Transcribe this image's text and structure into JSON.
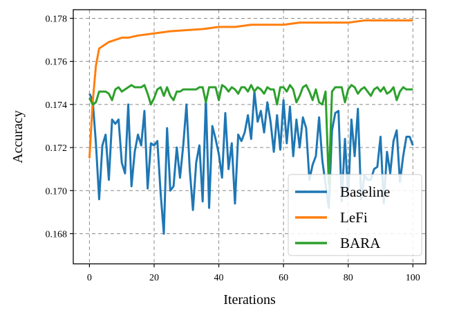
{
  "chart_data": {
    "type": "line",
    "title": "",
    "xlabel": "Iterations",
    "ylabel": "Accuracy",
    "xlim": [
      -5,
      104
    ],
    "ylim": [
      0.1666,
      0.1784
    ],
    "x_ticks": [
      0,
      20,
      40,
      60,
      80,
      100
    ],
    "x_tick_labels": [
      "0",
      "20",
      "40",
      "60",
      "80",
      "100"
    ],
    "y_ticks": [
      0.168,
      0.17,
      0.172,
      0.174,
      0.176,
      0.178
    ],
    "y_tick_labels": [
      "0.168",
      "0.170",
      "0.172",
      "0.174",
      "0.176",
      "0.178"
    ],
    "grid": true,
    "legend_position": "lower-right",
    "series": [
      {
        "name": "Baseline",
        "color": "#1f77b4",
        "values": [
          0.1745,
          0.1742,
          0.1722,
          0.1696,
          0.1721,
          0.1726,
          0.1705,
          0.1733,
          0.1731,
          0.1733,
          0.1713,
          0.1708,
          0.174,
          0.1702,
          0.1718,
          0.1726,
          0.1721,
          0.1737,
          0.1701,
          0.1722,
          0.1721,
          0.1723,
          0.1699,
          0.168,
          0.1729,
          0.17,
          0.1702,
          0.172,
          0.1706,
          0.1721,
          0.174,
          0.171,
          0.1691,
          0.1713,
          0.1721,
          0.1695,
          0.1743,
          0.1692,
          0.173,
          0.1724,
          0.1717,
          0.1706,
          0.1736,
          0.171,
          0.1722,
          0.1694,
          0.1726,
          0.1723,
          0.1727,
          0.1735,
          0.1724,
          0.1746,
          0.1732,
          0.1737,
          0.1727,
          0.1741,
          0.1732,
          0.1718,
          0.1735,
          0.1719,
          0.1742,
          0.1722,
          0.1739,
          0.1716,
          0.1733,
          0.172,
          0.1734,
          0.1729,
          0.1705,
          0.1712,
          0.1716,
          0.1734,
          0.1714,
          0.1703,
          0.1692,
          0.1728,
          0.1736,
          0.1737,
          0.1695,
          0.1724,
          0.1697,
          0.1733,
          0.1716,
          0.1738,
          0.1696,
          0.1707,
          0.1705,
          0.1705,
          0.171,
          0.1711,
          0.1725,
          0.1694,
          0.1718,
          0.1708,
          0.1723,
          0.1728,
          0.1704,
          0.1716,
          0.1725,
          0.1725,
          0.1721
        ],
        "note": "values sampled at integer iterations 0-100"
      },
      {
        "name": "LeFi",
        "color": "#ff7f0e",
        "x": [
          0,
          1,
          2,
          3,
          4,
          5,
          6,
          8,
          10,
          12,
          15,
          20,
          25,
          30,
          35,
          40,
          45,
          50,
          55,
          60,
          65,
          70,
          75,
          80,
          85,
          90,
          95,
          100
        ],
        "values": [
          0.1715,
          0.1741,
          0.1758,
          0.1766,
          0.1767,
          0.1768,
          0.1769,
          0.177,
          0.1771,
          0.1771,
          0.1772,
          0.1773,
          0.1774,
          0.17745,
          0.1775,
          0.1776,
          0.1776,
          0.1777,
          0.1777,
          0.1777,
          0.1778,
          0.1778,
          0.1778,
          0.1778,
          0.1779,
          0.1779,
          0.1779,
          0.1779
        ]
      },
      {
        "name": "BARA",
        "color": "#2ca02c",
        "values": [
          0.1743,
          0.174,
          0.1741,
          0.1746,
          0.1746,
          0.1746,
          0.1745,
          0.1742,
          0.1747,
          0.1748,
          0.1746,
          0.1747,
          0.1748,
          0.1749,
          0.1748,
          0.1748,
          0.1748,
          0.1749,
          0.1745,
          0.174,
          0.1743,
          0.1747,
          0.1748,
          0.1744,
          0.1748,
          0.1744,
          0.1742,
          0.1746,
          0.1746,
          0.1747,
          0.1747,
          0.1747,
          0.1747,
          0.1747,
          0.1748,
          0.1748,
          0.1741,
          0.1748,
          0.1748,
          0.1748,
          0.1742,
          0.1749,
          0.1748,
          0.1746,
          0.1748,
          0.1747,
          0.1745,
          0.1748,
          0.1748,
          0.1746,
          0.1749,
          0.1746,
          0.1748,
          0.1747,
          0.1745,
          0.1748,
          0.1747,
          0.1747,
          0.174,
          0.1748,
          0.1748,
          0.1746,
          0.1749,
          0.1747,
          0.1741,
          0.1744,
          0.1748,
          0.1749,
          0.1746,
          0.1742,
          0.1747,
          0.1741,
          0.174,
          0.1746,
          0.1703,
          0.1746,
          0.1748,
          0.1748,
          0.1748,
          0.1741,
          0.1747,
          0.1749,
          0.1748,
          0.1745,
          0.1747,
          0.1748,
          0.1746,
          0.1744,
          0.1747,
          0.1748,
          0.1746,
          0.1748,
          0.1745,
          0.1746,
          0.1748,
          0.1742,
          0.1746,
          0.1748,
          0.1747,
          0.1747,
          0.1747
        ],
        "note": "values sampled at integer iterations 0-100"
      }
    ]
  }
}
